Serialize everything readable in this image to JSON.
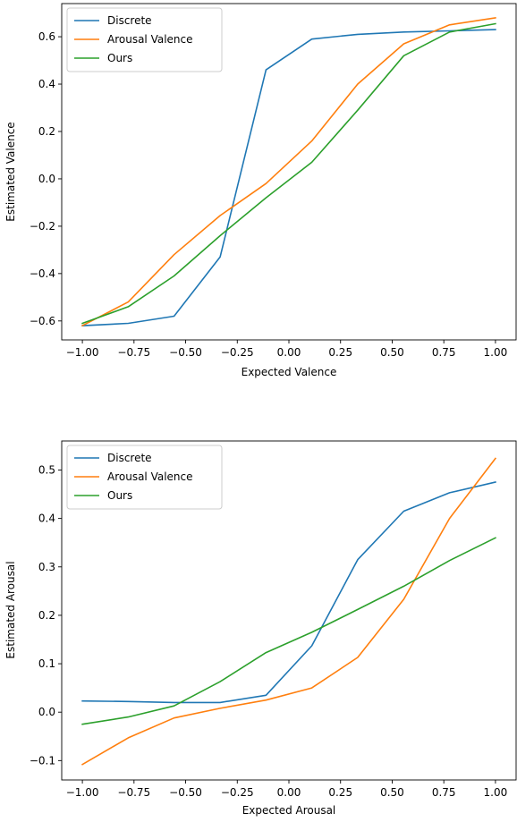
{
  "chart_data": [
    {
      "type": "line",
      "xlabel": "Expected Valence",
      "ylabel": "Estimated Valence",
      "xlim": [
        -1.1,
        1.1
      ],
      "ylim": [
        -0.68,
        0.74
      ],
      "xticks": [
        -1.0,
        -0.75,
        -0.5,
        -0.25,
        0.0,
        0.25,
        0.5,
        0.75,
        1.0
      ],
      "xtick_labels": [
        "−1.00",
        "−0.75",
        "−0.50",
        "−0.25",
        "0.00",
        "0.25",
        "0.50",
        "0.75",
        "1.00"
      ],
      "yticks": [
        -0.6,
        -0.4,
        -0.2,
        0.0,
        0.2,
        0.4,
        0.6
      ],
      "ytick_labels": [
        "−0.6",
        "−0.4",
        "−0.2",
        "0.0",
        "0.2",
        "0.4",
        "0.6"
      ],
      "grid": false,
      "legend": "upper-left",
      "x": [
        -1.0,
        -0.778,
        -0.556,
        -0.333,
        -0.111,
        0.111,
        0.333,
        0.556,
        0.778,
        1.0
      ],
      "series": [
        {
          "name": "Discrete",
          "color": "#1f77b4",
          "values": [
            -0.62,
            -0.61,
            -0.58,
            -0.33,
            0.46,
            0.59,
            0.61,
            0.62,
            0.625,
            0.63
          ]
        },
        {
          "name": "Arousal Valence",
          "color": "#ff7f0e",
          "values": [
            -0.62,
            -0.52,
            -0.32,
            -0.155,
            -0.02,
            0.16,
            0.4,
            0.57,
            0.65,
            0.68
          ]
        },
        {
          "name": "Ours",
          "color": "#2ca02c",
          "values": [
            -0.61,
            -0.54,
            -0.41,
            -0.24,
            -0.08,
            0.07,
            0.29,
            0.52,
            0.62,
            0.655
          ]
        }
      ]
    },
    {
      "type": "line",
      "xlabel": "Expected Arousal",
      "ylabel": "Estimated Arousal",
      "xlim": [
        -1.1,
        1.1
      ],
      "ylim": [
        -0.14,
        0.56
      ],
      "xticks": [
        -1.0,
        -0.75,
        -0.5,
        -0.25,
        0.0,
        0.25,
        0.5,
        0.75,
        1.0
      ],
      "xtick_labels": [
        "−1.00",
        "−0.75",
        "−0.50",
        "−0.25",
        "0.00",
        "0.25",
        "0.50",
        "0.75",
        "1.00"
      ],
      "yticks": [
        -0.1,
        0.0,
        0.1,
        0.2,
        0.3,
        0.4,
        0.5
      ],
      "ytick_labels": [
        "−0.1",
        "0.0",
        "0.1",
        "0.2",
        "0.3",
        "0.4",
        "0.5"
      ],
      "grid": false,
      "legend": "upper-left",
      "x": [
        -1.0,
        -0.778,
        -0.556,
        -0.333,
        -0.111,
        0.111,
        0.333,
        0.556,
        0.778,
        1.0
      ],
      "series": [
        {
          "name": "Discrete",
          "color": "#1f77b4",
          "values": [
            0.023,
            0.022,
            0.02,
            0.02,
            0.035,
            0.137,
            0.315,
            0.415,
            0.453,
            0.475
          ]
        },
        {
          "name": "Arousal Valence",
          "color": "#ff7f0e",
          "values": [
            -0.108,
            -0.053,
            -0.012,
            0.008,
            0.025,
            0.05,
            0.113,
            0.233,
            0.4,
            0.524
          ]
        },
        {
          "name": "Ours",
          "color": "#2ca02c",
          "values": [
            -0.025,
            -0.01,
            0.013,
            0.063,
            0.123,
            0.165,
            0.212,
            0.26,
            0.313,
            0.36
          ]
        }
      ]
    }
  ]
}
